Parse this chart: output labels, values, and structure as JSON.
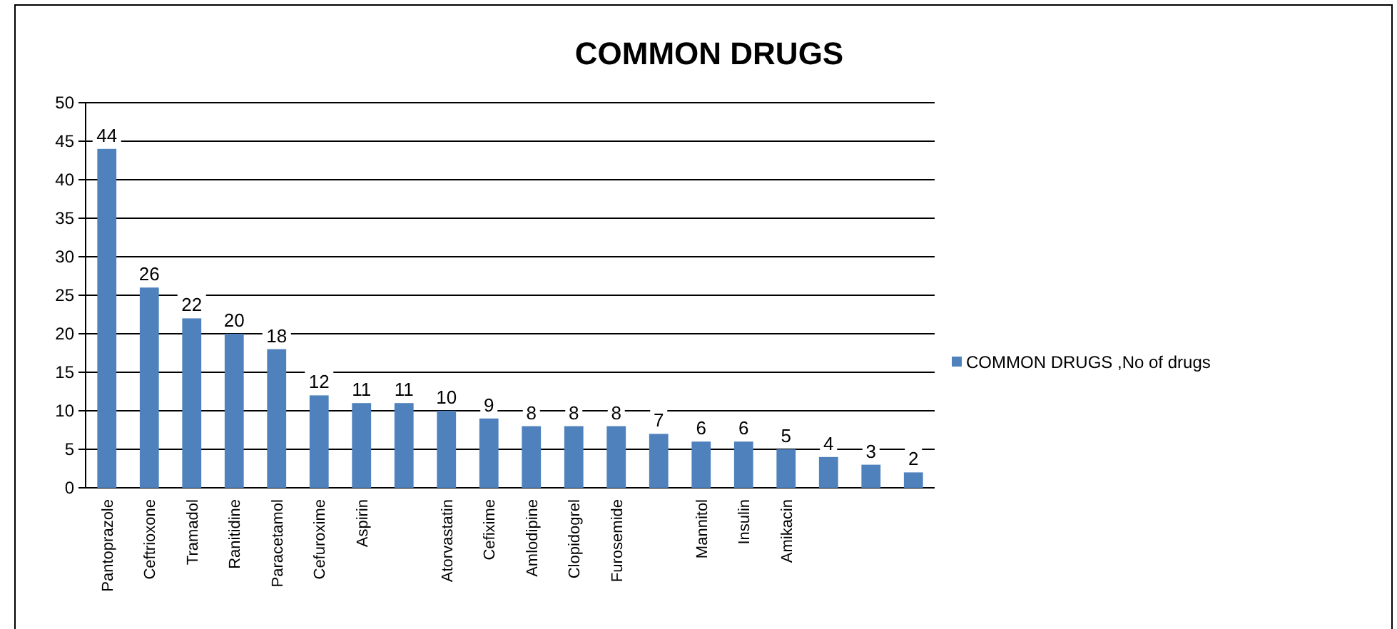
{
  "chart_data": {
    "type": "bar",
    "title": "COMMON DRUGS",
    "categories": [
      "Pantoprazole",
      "Ceftrioxone",
      "Tramadol",
      "Ranitidine",
      "Paracetamol",
      "Cefuroxime",
      "Aspirin",
      null,
      "Atorvastatin",
      "Cefixime",
      "Amlodipine",
      "Clopidogrel",
      "Furosemide",
      null,
      "Mannitol",
      "Insulin",
      "Amikacin",
      null,
      null,
      null
    ],
    "series": [
      {
        "name": "COMMON DRUGS ,No of drugs",
        "color": "#4f81bd",
        "values": [
          44,
          26,
          22,
          20,
          18,
          12,
          11,
          11,
          10,
          9,
          8,
          8,
          8,
          7,
          6,
          6,
          5,
          4,
          3,
          2
        ]
      }
    ],
    "ylim": [
      0,
      50
    ],
    "yticks": [
      0,
      5,
      10,
      15,
      20,
      25,
      30,
      35,
      40,
      45,
      50
    ],
    "grid": "y",
    "legend": "right",
    "data_labels": true
  }
}
